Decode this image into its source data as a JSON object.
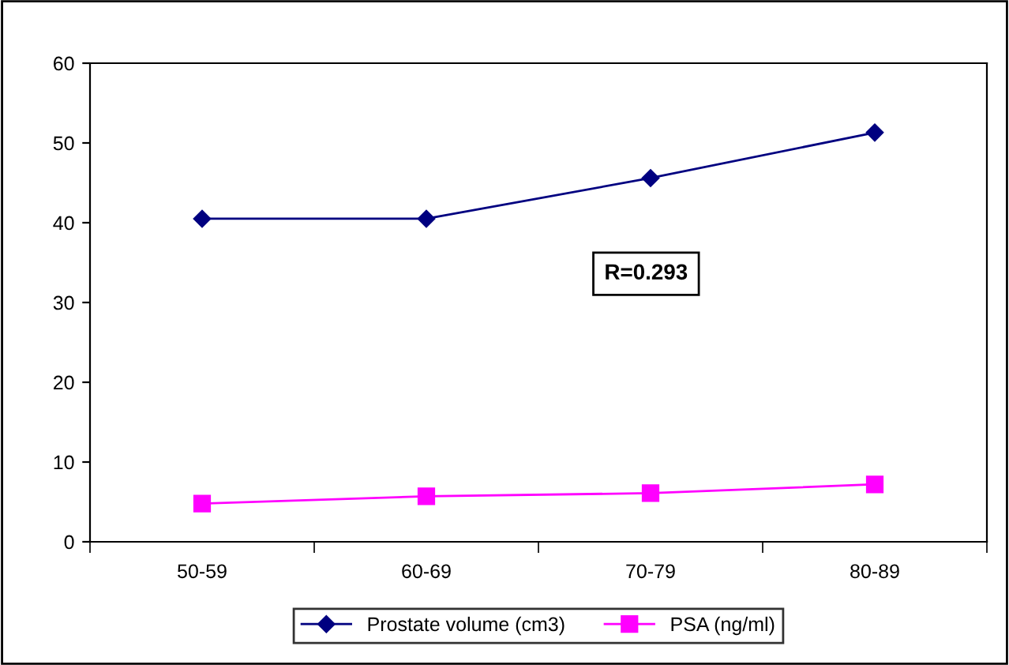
{
  "chart_data": {
    "type": "line",
    "categories": [
      "50-59",
      "60-69",
      "70-79",
      "80-89"
    ],
    "series": [
      {
        "name": "Prostate volume (cm3)",
        "color": "#000080",
        "marker": "diamond",
        "values": [
          40.5,
          40.5,
          45.6,
          51.3
        ]
      },
      {
        "name": "PSA (ng/ml)",
        "color": "#ff00ff",
        "marker": "square",
        "values": [
          4.8,
          5.7,
          6.1,
          7.2
        ]
      }
    ],
    "ylim": [
      0,
      60
    ],
    "yticks": [
      0,
      10,
      20,
      30,
      40,
      50,
      60
    ],
    "grid": false,
    "legend": "bottom",
    "annotations": [
      "R=0.293"
    ]
  }
}
